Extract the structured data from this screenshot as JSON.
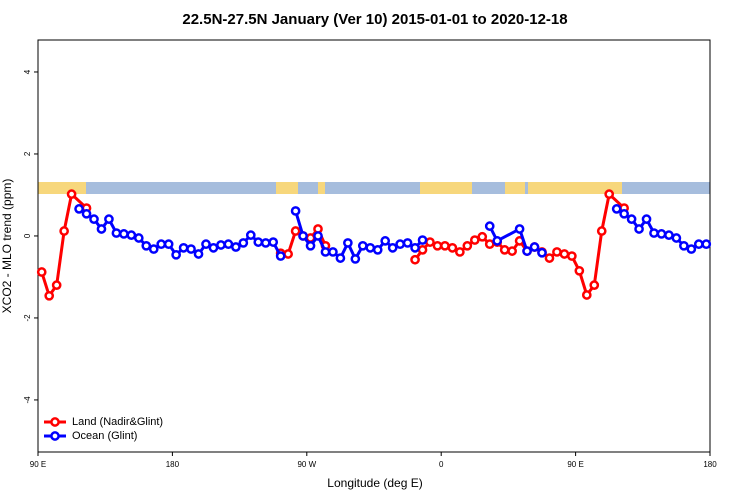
{
  "chart_data": {
    "type": "line",
    "title": "22.5N-27.5N January (Ver 10)   2015-01-01 to 2020-12-18",
    "x_label": "Longitude (deg E)",
    "y_label": "XCO2 - MLO trend (ppm)",
    "xlim": [
      90,
      540
    ],
    "ylim": [
      -5.27,
      4.78
    ],
    "xticks": [
      {
        "value": 90,
        "label": "90 E"
      },
      {
        "value": 180,
        "label": "180"
      },
      {
        "value": 270,
        "label": "90 W"
      },
      {
        "value": 360,
        "label": "0"
      },
      {
        "value": 450,
        "label": "90 E"
      },
      {
        "value": 540,
        "label": "180"
      }
    ],
    "yticks": [
      -4,
      -2,
      0,
      2,
      4
    ],
    "legend": "bottomleft",
    "series": [
      {
        "name": "Land (Nadir&Glint)",
        "color": "#ff0000",
        "x": [
          92.5,
          97.5,
          102.5,
          107.5,
          112.5,
          122.5,
          127.5,
          252.5,
          257.5,
          262.5,
          267.5,
          272.5,
          277.5,
          282.5,
          287.5,
          342.5,
          347.5,
          352.5,
          357.5,
          362.5,
          367.5,
          372.5,
          377.5,
          382.5,
          387.5,
          392.5,
          397.5,
          402.5,
          407.5,
          412.5,
          417.5,
          422.5,
          427.5,
          432.5,
          437.5,
          442.5,
          447.5,
          452.5,
          457.5,
          462.5,
          467.5,
          472.5,
          482.5
        ],
        "values": [
          -0.88,
          -1.46,
          -1.2,
          0.12,
          1.02,
          0.68,
          null,
          -0.42,
          -0.44,
          0.12,
          0.0,
          -0.05,
          0.17,
          -0.24,
          null,
          -0.58,
          -0.34,
          -0.15,
          -0.24,
          -0.24,
          -0.29,
          -0.39,
          -0.24,
          -0.1,
          -0.02,
          -0.2,
          -0.15,
          -0.34,
          -0.37,
          -0.12,
          -0.37,
          -0.27,
          -0.39,
          -0.54,
          -0.39,
          -0.44,
          -0.49,
          -0.85,
          -1.44,
          -1.2,
          0.12,
          1.02,
          0.68
        ]
      },
      {
        "name": "Ocean (Glint)",
        "color": "#0000ff",
        "x": [
          117.5,
          122.5,
          127.5,
          132.5,
          137.5,
          142.5,
          147.5,
          152.5,
          157.5,
          162.5,
          167.5,
          172.5,
          177.5,
          182.5,
          187.5,
          192.5,
          197.5,
          202.5,
          207.5,
          212.5,
          217.5,
          222.5,
          227.5,
          232.5,
          237.5,
          242.5,
          247.5,
          252.5,
          257.5,
          262.5,
          267.5,
          272.5,
          277.5,
          282.5,
          287.5,
          292.5,
          297.5,
          302.5,
          307.5,
          312.5,
          317.5,
          322.5,
          327.5,
          332.5,
          337.5,
          342.5,
          347.5,
          352.5,
          392.5,
          397.5,
          412.5,
          417.5,
          422.5,
          427.5,
          432.5,
          477.5,
          482.5,
          487.5,
          492.5,
          497.5,
          502.5,
          507.5,
          512.5,
          517.5,
          522.5,
          527.5,
          532.5,
          537.5
        ],
        "values": [
          0.66,
          0.54,
          0.41,
          0.17,
          0.41,
          0.07,
          0.05,
          0.02,
          -0.05,
          -0.24,
          -0.32,
          -0.2,
          -0.2,
          -0.46,
          -0.29,
          -0.32,
          -0.44,
          -0.2,
          -0.29,
          -0.22,
          -0.2,
          -0.27,
          -0.17,
          0.02,
          -0.15,
          -0.17,
          -0.15,
          -0.49,
          null,
          0.61,
          0,
          -0.24,
          0,
          -0.39,
          -0.39,
          -0.54,
          -0.17,
          -0.56,
          -0.24,
          -0.29,
          -0.34,
          -0.12,
          -0.29,
          -0.2,
          -0.17,
          -0.29,
          -0.1,
          null,
          0.24,
          -0.12,
          0.17,
          -0.37,
          -0.27,
          -0.41,
          null,
          0.66,
          0.54,
          0.41,
          0.17,
          0.41,
          0.07,
          0.05,
          0.02,
          -0.05,
          -0.24,
          -0.32,
          -0.2,
          -0.2
        ]
      }
    ]
  }
}
